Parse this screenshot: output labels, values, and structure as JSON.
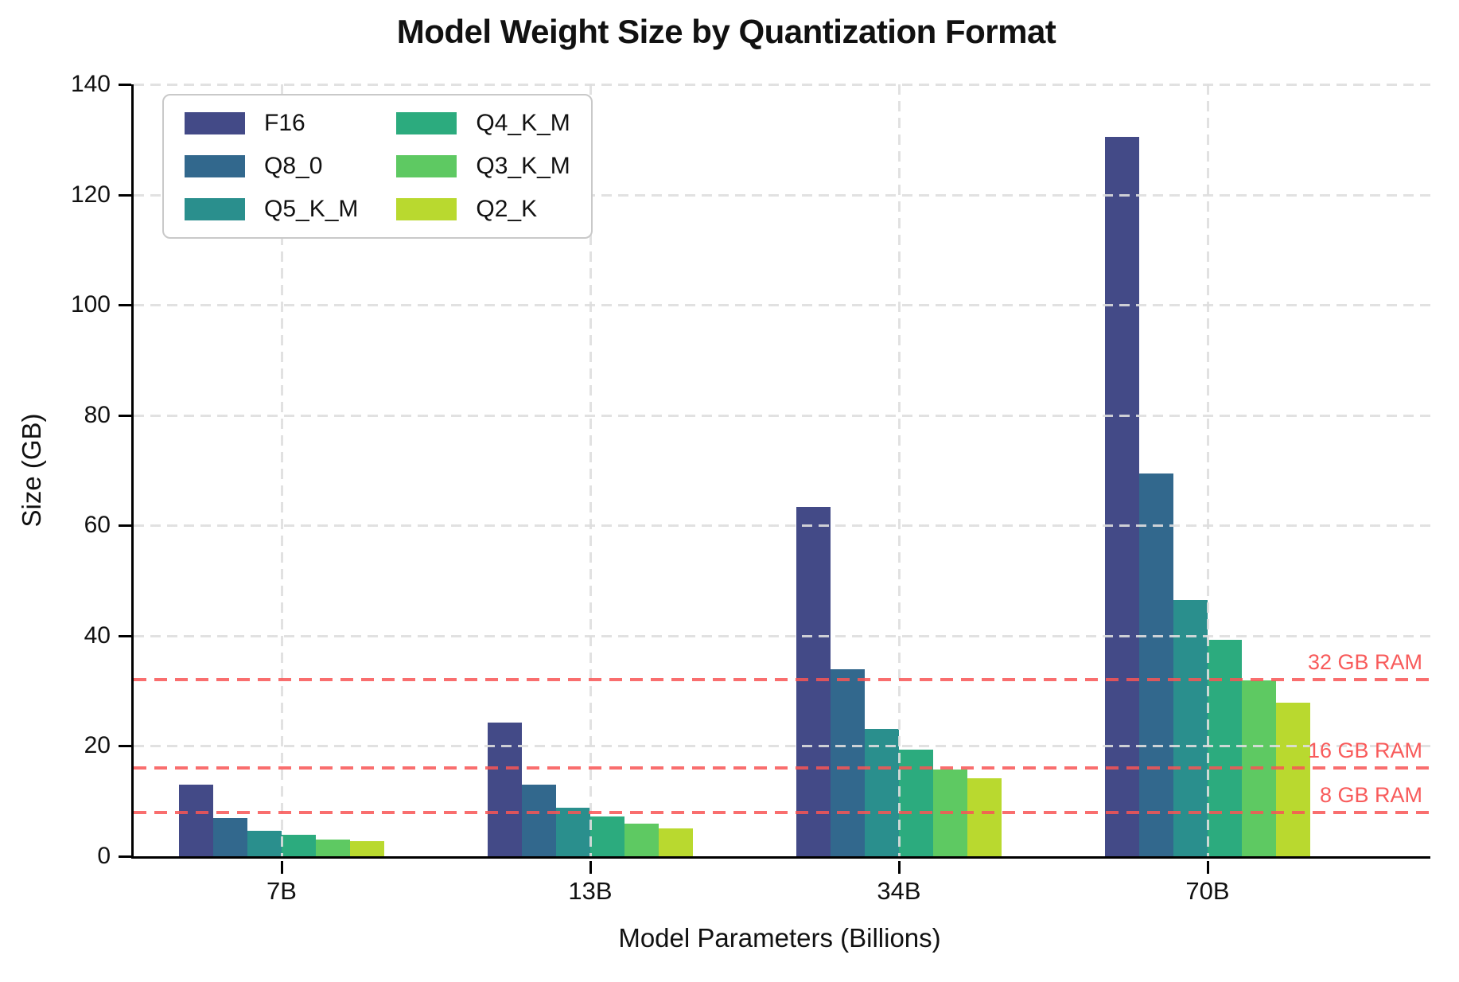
{
  "chart_data": {
    "type": "bar",
    "title": "Model Weight Size by Quantization Format",
    "xlabel": "Model Parameters (Billions)",
    "ylabel": "Size (GB)",
    "categories": [
      "7B",
      "13B",
      "34B",
      "70B"
    ],
    "series": [
      {
        "name": "F16",
        "color": "#434a87",
        "values": [
          13.0,
          24.2,
          63.4,
          130.5
        ]
      },
      {
        "name": "Q8_0",
        "color": "#32688d",
        "values": [
          6.9,
          13.0,
          33.9,
          69.4
        ]
      },
      {
        "name": "Q5_K_M",
        "color": "#2a8f8d",
        "values": [
          4.6,
          8.8,
          23.1,
          46.5
        ]
      },
      {
        "name": "Q4_K_M",
        "color": "#2cab7e",
        "values": [
          3.9,
          7.2,
          19.4,
          39.3
        ]
      },
      {
        "name": "Q3_K_M",
        "color": "#5ec962",
        "values": [
          3.1,
          5.9,
          15.8,
          31.9
        ]
      },
      {
        "name": "Q2_K",
        "color": "#b9d92f",
        "values": [
          2.7,
          5.1,
          14.2,
          27.8
        ]
      }
    ],
    "ylim": [
      0,
      140
    ],
    "yticks": [
      0,
      20,
      40,
      60,
      80,
      100,
      120,
      140
    ],
    "grid": true,
    "legend_position": "upper-left",
    "legend_columns": 2,
    "reference_lines": [
      {
        "value": 8,
        "label": "8 GB RAM",
        "color": "#f85b5b"
      },
      {
        "value": 16,
        "label": "16 GB RAM",
        "color": "#f85b5b"
      },
      {
        "value": 32,
        "label": "32 GB RAM",
        "color": "#f85b5b"
      }
    ]
  }
}
